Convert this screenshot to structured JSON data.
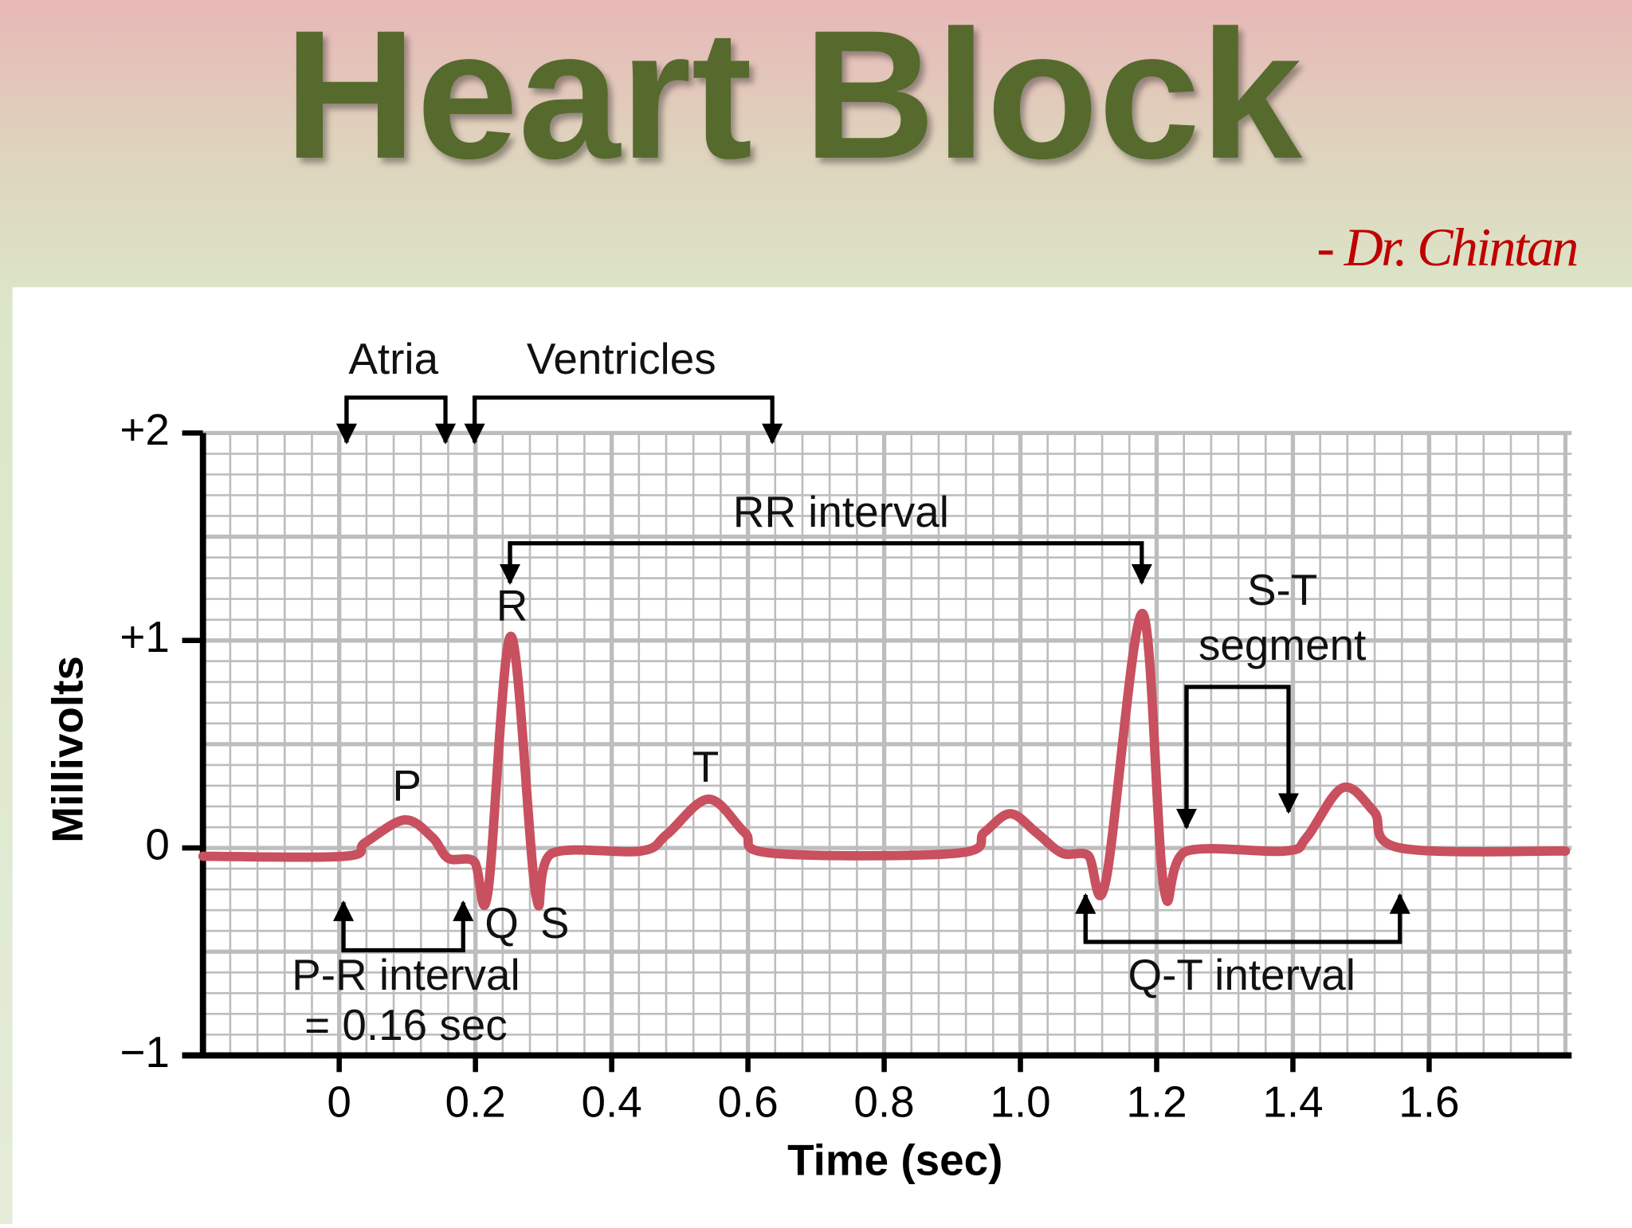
{
  "header": {
    "title": "Heart Block",
    "author": "- Dr. Chintan"
  },
  "chart_data": {
    "type": "line",
    "xlabel": "Time (sec)",
    "ylabel": "Millivolts",
    "xlim": [
      -0.2,
      1.8
    ],
    "ylim": [
      -1,
      2
    ],
    "xticks": [
      0,
      0.2,
      0.4,
      0.6,
      0.8,
      {
        "value": 1,
        "label": "1.0"
      },
      1.2,
      1.4,
      1.6
    ],
    "yticks": [
      {
        "value": -1,
        "label": "−1"
      },
      0,
      {
        "value": 1,
        "label": "+1"
      },
      {
        "value": 2,
        "label": "+2"
      }
    ],
    "grid": true,
    "series": [
      {
        "color": "#c8505f",
        "x": [
          -0.2,
          0.008,
          0.038,
          0.096,
          0.137,
          0.16,
          0.198,
          0.218,
          0.252,
          0.289,
          0.313,
          0.443,
          0.481,
          0.542,
          0.595,
          0.634,
          0.908,
          0.947,
          0.985,
          1.023,
          1.061,
          1.099,
          1.125,
          1.179,
          1.211,
          1.244,
          1.389,
          1.42,
          1.473,
          1.519,
          1.557,
          1.8
        ],
        "values": [
          -0.04,
          -0.04,
          0.025,
          0.135,
          0.05,
          -0.05,
          -0.065,
          -0.22,
          1.02,
          -0.23,
          -0.025,
          -0.015,
          0.065,
          0.235,
          0.075,
          -0.025,
          -0.025,
          0.075,
          0.165,
          0.075,
          -0.025,
          -0.035,
          -0.165,
          1.13,
          -0.2,
          -0.015,
          -0.015,
          0.05,
          0.29,
          0.175,
          0,
          -0.015
        ]
      }
    ],
    "annotations": [
      "Atria",
      "Ventricles",
      "RR interval",
      "R",
      "P",
      "T",
      "Q",
      "S",
      "S-T",
      "segment",
      "P-R interval",
      "= 0.16 sec",
      "Q-T interval"
    ]
  }
}
